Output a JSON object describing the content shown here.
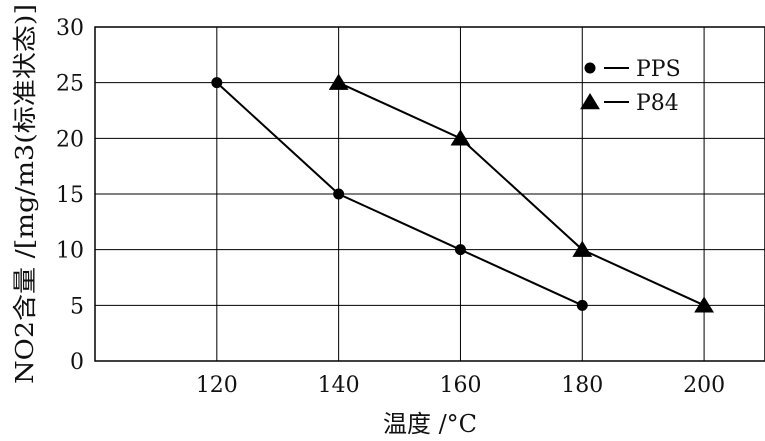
{
  "chart_data": {
    "type": "line",
    "title": "",
    "xlabel": "温度 /°C",
    "ylabel": "NO2含量 /[mg/m3(标准状态)]",
    "xlim": [
      100,
      210
    ],
    "ylim": [
      0,
      30
    ],
    "xticks": [
      120,
      140,
      160,
      180,
      200
    ],
    "yticks": [
      0,
      5,
      10,
      15,
      20,
      25,
      30
    ],
    "grid": true,
    "legend_position": "top-right",
    "series": [
      {
        "name": "PPS",
        "marker": "circle",
        "x": [
          120,
          140,
          160,
          180
        ],
        "y": [
          25,
          15,
          10,
          5
        ]
      },
      {
        "name": "P84",
        "marker": "triangle",
        "x": [
          140,
          160,
          180,
          200
        ],
        "y": [
          25,
          20,
          10,
          5
        ]
      }
    ]
  }
}
